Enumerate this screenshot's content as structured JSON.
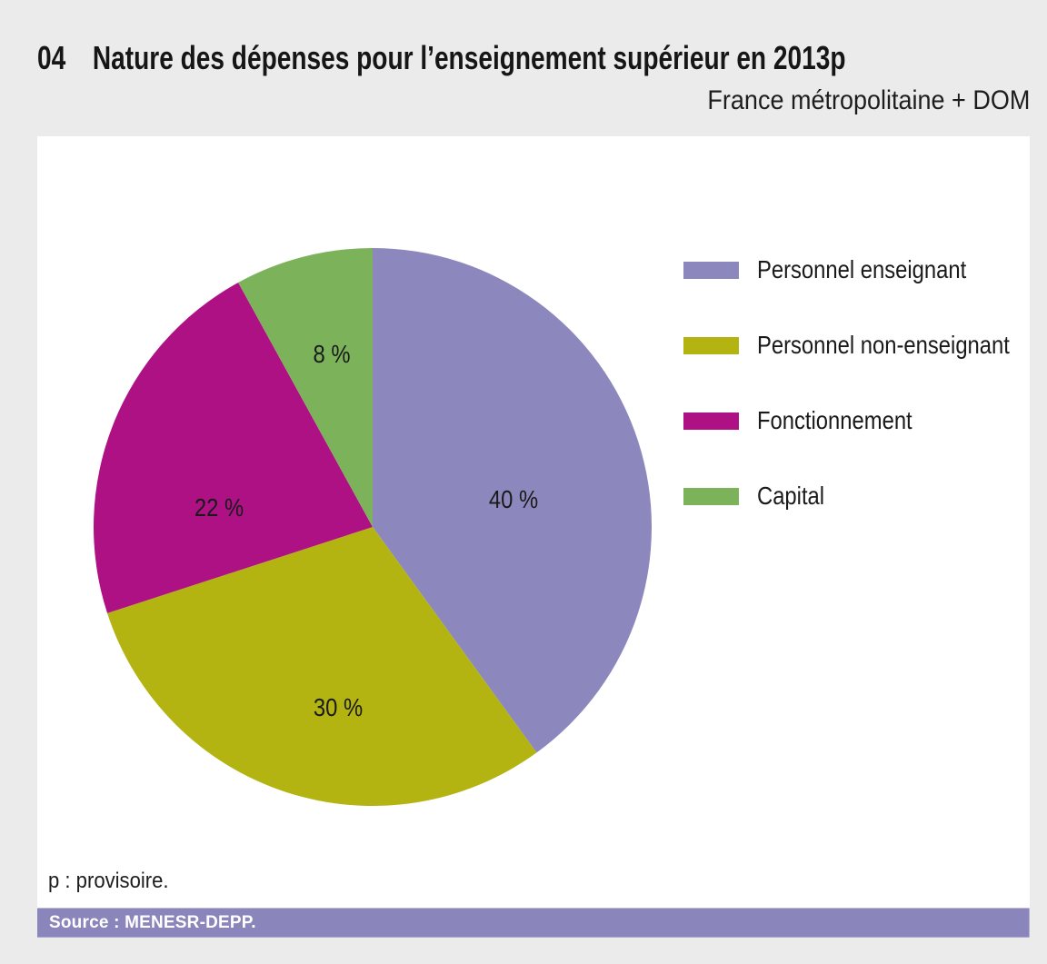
{
  "header": {
    "figure_number": "04",
    "title": "Nature des dépenses pour l’enseignement supérieur en 2013p",
    "subtitle": "France métropolitaine + DOM"
  },
  "chart_data": {
    "type": "pie",
    "title": "Nature des dépenses pour l’enseignement supérieur en 2013p",
    "subtitle": "France métropolitaine + DOM",
    "categories": [
      "Personnel enseignant",
      "Personnel non-enseignant",
      "Fonctionnement",
      "Capital"
    ],
    "values": [
      40,
      30,
      22,
      8
    ],
    "unit": "%",
    "slice_labels": [
      "40 %",
      "30 %",
      "22 %",
      "8 %"
    ],
    "colors": [
      "#8C88BD",
      "#B3B411",
      "#AE1184",
      "#7CB35A"
    ],
    "start_angle_deg": 0,
    "direction": "clockwise",
    "legend_position": "right",
    "grid": false
  },
  "footnote": "p : provisoire.",
  "source_bar": {
    "label": "Source : MENESR-DEPP.",
    "background": "#8A86BC"
  }
}
